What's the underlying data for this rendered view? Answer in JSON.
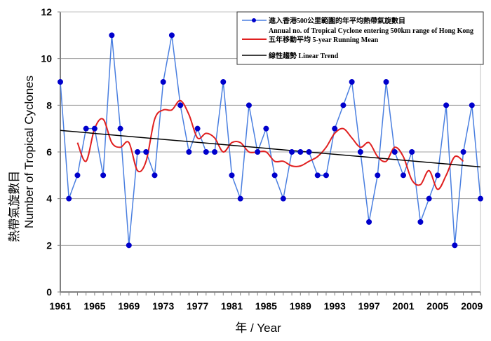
{
  "chart_data": {
    "type": "line",
    "xlabel": "年 / Year",
    "ylabel": "熱帶氣旋數目 Number of Tropical Cyclones",
    "ylabel_zh": "熱帶氣旋數目",
    "ylabel_en": "Number of Tropical Cyclones",
    "xlim": [
      1961,
      2010
    ],
    "ylim": [
      0,
      12
    ],
    "x_ticks": [
      "1961",
      "1965",
      "1969",
      "1973",
      "1977",
      "1981",
      "1985",
      "1989",
      "1993",
      "1997",
      "2001",
      "2005",
      "2009"
    ],
    "y_ticks": [
      "0",
      "2",
      "4",
      "6",
      "8",
      "10",
      "12"
    ],
    "grid": "horizontal",
    "legend_position": "top-right",
    "x": [
      1961,
      1962,
      1963,
      1964,
      1965,
      1966,
      1967,
      1968,
      1969,
      1970,
      1971,
      1972,
      1973,
      1974,
      1975,
      1976,
      1977,
      1978,
      1979,
      1980,
      1981,
      1982,
      1983,
      1984,
      1985,
      1986,
      1987,
      1988,
      1989,
      1990,
      1991,
      1992,
      1993,
      1994,
      1995,
      1996,
      1997,
      1998,
      1999,
      2000,
      2001,
      2002,
      2003,
      2004,
      2005,
      2006,
      2007,
      2008,
      2009,
      2010
    ],
    "series": [
      {
        "name": "進入香港500公里範圍的年平均熱帶氣旋數目",
        "name_en": "Annual no. of Tropical Cyclone entering 500km range of Hong Kong",
        "color": "#0000cc",
        "line_color": "#4a7fe0",
        "values": [
          9,
          4,
          5,
          7,
          7,
          5,
          11,
          7,
          2,
          6,
          6,
          5,
          9,
          11,
          8,
          6,
          7,
          6,
          6,
          9,
          5,
          4,
          8,
          6,
          7,
          5,
          4,
          6,
          6,
          6,
          5,
          5,
          7,
          8,
          9,
          6,
          3,
          5,
          9,
          6,
          5,
          6,
          3,
          4,
          5,
          8,
          2,
          6,
          8,
          4
        ]
      },
      {
        "name": "五年移動平均 5-year Running Mean",
        "color": "#e02020",
        "window": 5
      },
      {
        "name": "線性趨勢 Linear Trend",
        "color": "#000000"
      }
    ]
  }
}
